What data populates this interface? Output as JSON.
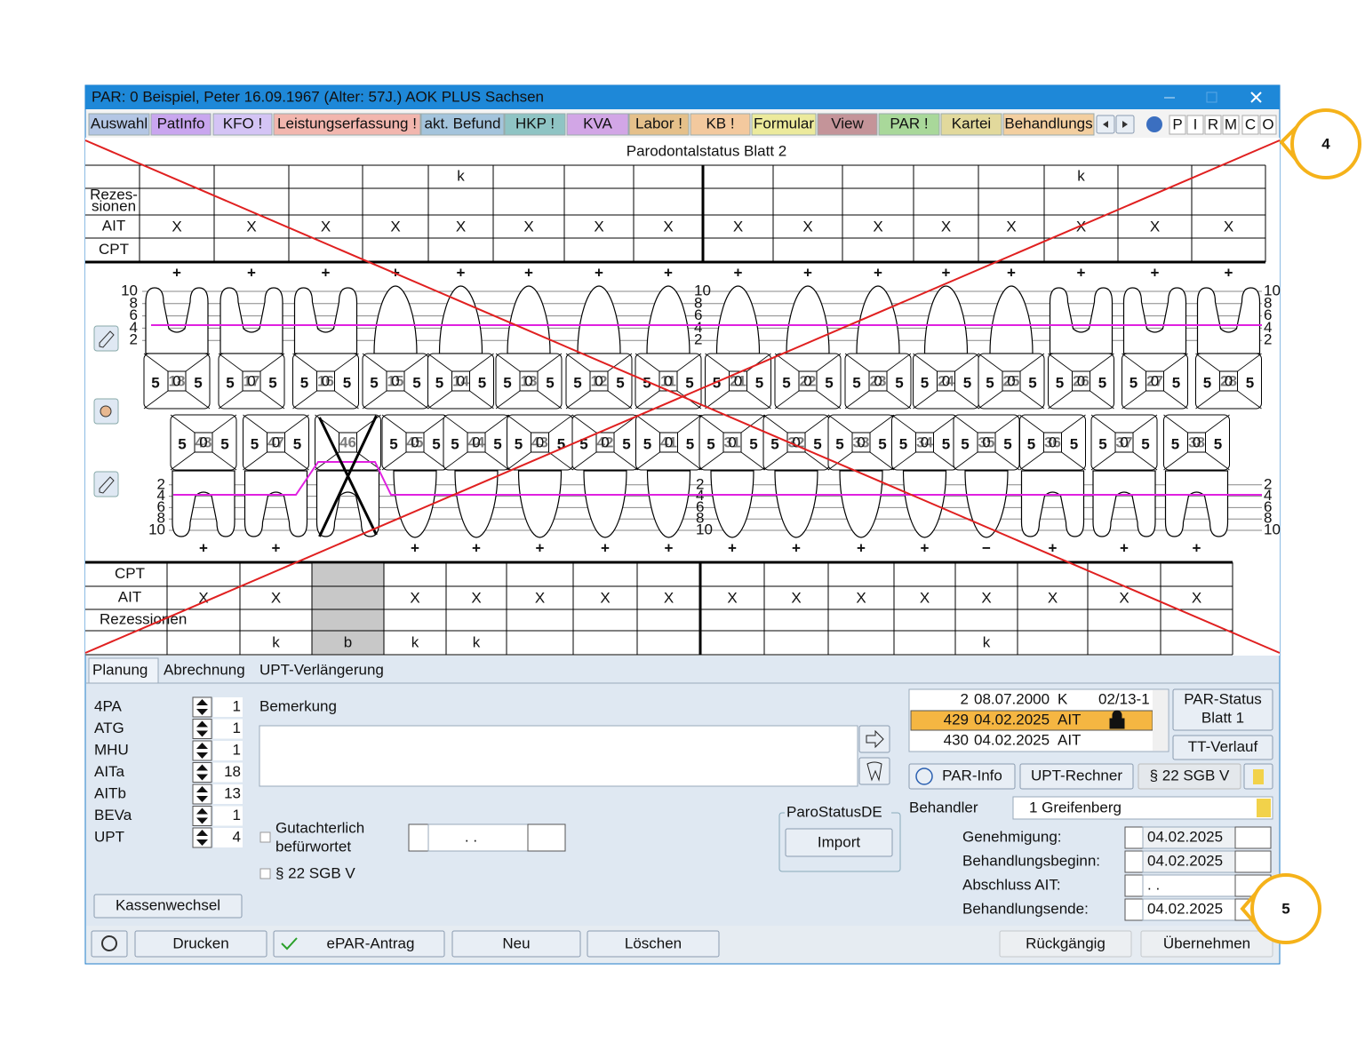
{
  "window": {
    "title": "PAR: 0  Beispiel, Peter  16.09.1967 (Alter: 57J.)  AOK PLUS Sachsen"
  },
  "tabs": [
    {
      "label": "Auswahl",
      "color": "#b4c6e4"
    },
    {
      "label": "PatInfo",
      "color": "#c9a6ef"
    },
    {
      "label": "KFO !",
      "color": "#d4c4f5"
    },
    {
      "label": "Leistungserfassung !",
      "color": "#f2b6ae"
    },
    {
      "label": "akt. Befund",
      "color": "#a4c4dc"
    },
    {
      "label": "HKP !",
      "color": "#8fc4c4"
    },
    {
      "label": "KVA",
      "color": "#d2a6e6"
    },
    {
      "label": "Labor !",
      "color": "#e5c08a"
    },
    {
      "label": "KB !",
      "color": "#f3c99e"
    },
    {
      "label": "Formular",
      "color": "#ecea9c"
    },
    {
      "label": "View",
      "color": "#c49499"
    },
    {
      "label": "PAR !",
      "color": "#a9d89a"
    },
    {
      "label": "Kartei",
      "color": "#e2d99c"
    },
    {
      "label": "Behandlungs",
      "color": "#f3cfa0"
    }
  ],
  "quick_buttons": [
    {
      "label": "P",
      "color": "#e02020"
    },
    {
      "label": "I",
      "color": "#222222"
    },
    {
      "label": "R",
      "color": "#e02020"
    },
    {
      "label": "M",
      "color": "#222222"
    },
    {
      "label": "C",
      "color": "#e02020"
    },
    {
      "label": "O",
      "color": "#222222"
    }
  ],
  "status": {
    "title": "Parodontalstatus Blatt 2",
    "upper_table": {
      "top_row": [
        null,
        null,
        null,
        null,
        "k",
        null,
        null,
        null,
        null,
        null,
        null,
        null,
        null,
        "k",
        null,
        null
      ],
      "rows": [
        {
          "label": [
            "Rezes-",
            "sionen"
          ],
          "cells": [
            null,
            null,
            null,
            null,
            null,
            null,
            null,
            null,
            null,
            null,
            null,
            null,
            null,
            null,
            null,
            null
          ]
        },
        {
          "label": [
            "AIT"
          ],
          "cells": [
            "X",
            "X",
            "X",
            "X",
            "X",
            "X",
            "X",
            "X",
            "X",
            "X",
            "X",
            "X",
            "X",
            "X",
            "X",
            "X"
          ]
        },
        {
          "label": [
            "CPT"
          ],
          "cells": [
            null,
            null,
            null,
            null,
            null,
            null,
            null,
            null,
            null,
            null,
            null,
            null,
            null,
            null,
            null,
            null
          ]
        }
      ]
    },
    "lower_table": {
      "rows": [
        {
          "label": [
            "CPT"
          ],
          "cells": [
            null,
            null,
            null,
            null,
            null,
            null,
            null,
            null,
            null,
            null,
            null,
            null,
            null,
            null,
            null,
            null
          ]
        },
        {
          "label": [
            "AIT"
          ],
          "cells": [
            "X",
            "X",
            null,
            "X",
            "X",
            "X",
            "X",
            "X",
            "X",
            "X",
            "X",
            "X",
            "X",
            "X",
            "X",
            "X"
          ]
        },
        {
          "label": [
            "Rezessionen"
          ],
          "cells": [
            null,
            null,
            null,
            null,
            null,
            null,
            null,
            null,
            null,
            null,
            null,
            null,
            null,
            null,
            null,
            null
          ]
        }
      ],
      "bottom_row": [
        null,
        "k",
        "b",
        "k",
        "k",
        null,
        null,
        null,
        null,
        null,
        null,
        null,
        "k",
        null,
        null,
        null
      ]
    },
    "scale_upper": [
      10,
      8,
      6,
      4,
      2
    ],
    "scale_lower": [
      2,
      4,
      6,
      8,
      10
    ],
    "upper_teeth": [
      {
        "number": "18",
        "left": "5",
        "right": "5",
        "center": "0",
        "sign": "+"
      },
      {
        "number": "17",
        "left": "5",
        "right": "5",
        "center": "0",
        "sign": "+"
      },
      {
        "number": "16",
        "left": "5",
        "right": "5",
        "center": "0",
        "sign": "+"
      },
      {
        "number": "15",
        "left": "5",
        "right": "5",
        "center": "0",
        "sign": "+"
      },
      {
        "number": "14",
        "left": "5",
        "right": "5",
        "center": "0",
        "sign": "+"
      },
      {
        "number": "13",
        "left": "5",
        "right": "5",
        "center": "0",
        "sign": "+"
      },
      {
        "number": "12",
        "left": "5",
        "right": "5",
        "center": "0",
        "sign": "+"
      },
      {
        "number": "11",
        "left": "5",
        "right": "5",
        "center": "0",
        "sign": "+"
      },
      {
        "number": "21",
        "left": "5",
        "right": "5",
        "center": "0",
        "sign": "+"
      },
      {
        "number": "22",
        "left": "5",
        "right": "5",
        "center": "0",
        "sign": "+"
      },
      {
        "number": "23",
        "left": "5",
        "right": "5",
        "center": "0",
        "sign": "+"
      },
      {
        "number": "24",
        "left": "5",
        "right": "5",
        "center": "0",
        "sign": "+"
      },
      {
        "number": "25",
        "left": "5",
        "right": "5",
        "center": "0",
        "sign": "+"
      },
      {
        "number": "26",
        "left": "5",
        "right": "5",
        "center": "0",
        "sign": "+"
      },
      {
        "number": "27",
        "left": "5",
        "right": "5",
        "center": "0",
        "sign": "+"
      },
      {
        "number": "28",
        "left": "5",
        "right": "5",
        "center": "0",
        "sign": "+"
      }
    ],
    "lower_teeth": [
      {
        "number": "48",
        "left": "5",
        "right": "5",
        "center": "0",
        "sign": "+"
      },
      {
        "number": "47",
        "left": "5",
        "right": "5",
        "center": "0",
        "sign": "+"
      },
      {
        "number": "46",
        "missing": true
      },
      {
        "number": "45",
        "left": "5",
        "right": "5",
        "center": "0",
        "sign": "+"
      },
      {
        "number": "44",
        "left": "5",
        "right": "5",
        "center": "0",
        "sign": "+"
      },
      {
        "number": "43",
        "left": "5",
        "right": "5",
        "center": "0",
        "sign": "+"
      },
      {
        "number": "42",
        "left": "5",
        "right": "5",
        "center": "0",
        "sign": "+"
      },
      {
        "number": "41",
        "left": "5",
        "right": "5",
        "center": "0",
        "sign": "+"
      },
      {
        "number": "31",
        "left": "5",
        "right": "5",
        "center": "0",
        "sign": "+"
      },
      {
        "number": "32",
        "left": "5",
        "right": "5",
        "center": "0",
        "sign": "+"
      },
      {
        "number": "33",
        "left": "5",
        "right": "5",
        "center": "0",
        "sign": "+"
      },
      {
        "number": "34",
        "left": "5",
        "right": "5",
        "center": "0",
        "sign": "+"
      },
      {
        "number": "35",
        "left": "5",
        "right": "5",
        "center": "0",
        "sign": "−"
      },
      {
        "number": "36",
        "left": "5",
        "right": "5",
        "center": "0",
        "sign": "+"
      },
      {
        "number": "37",
        "left": "5",
        "right": "5",
        "center": "0",
        "sign": "+"
      },
      {
        "number": "38",
        "left": "5",
        "right": "5",
        "center": "0",
        "sign": "+"
      }
    ]
  },
  "panel": {
    "tabs": [
      "Planung",
      "Abrechnung",
      "UPT-Verlängerung"
    ],
    "counts": [
      {
        "label": "4PA",
        "value": 1
      },
      {
        "label": "ATG",
        "value": 1
      },
      {
        "label": "MHU",
        "value": 1
      },
      {
        "label": "AITa",
        "value": 18
      },
      {
        "label": "AITb",
        "value": 13
      },
      {
        "label": "BEVa",
        "value": 1
      },
      {
        "label": "UPT",
        "value": 4
      }
    ],
    "remark_label": "Bemerkung",
    "checkboxes": [
      {
        "label": [
          "Gutachterlich",
          "befürwortet"
        ]
      },
      {
        "label": [
          "§ 22 SGB V"
        ]
      }
    ],
    "empty_date": ".   .",
    "parostatus": {
      "legend": "ParoStatusDE",
      "button": "Import"
    },
    "kassenwechsel": "Kassenwechsel",
    "history": [
      {
        "no": "2",
        "date": "08.07.2000",
        "type": "K",
        "ref": "02/13-1"
      },
      {
        "no": "429",
        "date": "04.02.2025",
        "type": "AIT",
        "selected": true
      },
      {
        "no": "430",
        "date": "04.02.2025",
        "type": "AIT"
      }
    ],
    "side_buttons": [
      {
        "label": [
          "PAR-Status",
          "Blatt 1"
        ]
      },
      {
        "label": [
          "TT-Verlauf"
        ]
      }
    ],
    "info_buttons": [
      {
        "label": "PAR-Info"
      },
      {
        "label": "UPT-Rechner"
      },
      {
        "label": "§ 22 SGB V",
        "disabled": true
      }
    ],
    "behandler": {
      "label": "Behandler",
      "value": "1 Greifenberg"
    },
    "dates": [
      {
        "label": "Genehmigung:",
        "value": "04.02.2025",
        "disabled": true
      },
      {
        "label": "Behandlungsbeginn:",
        "value": "04.02.2025",
        "disabled": true
      },
      {
        "label": "Abschluss AIT:",
        "value": ".   ."
      },
      {
        "label": "Behandlungsende:",
        "value": "04.02.2025"
      }
    ],
    "footer_buttons": [
      {
        "label": "Drucken"
      },
      {
        "label": "ePAR-Antrag",
        "check": true
      },
      {
        "label": "Neu"
      },
      {
        "label": "Löschen"
      },
      {
        "label": "Rückgängig",
        "disabled": true
      },
      {
        "label": "Übernehmen",
        "disabled": true
      }
    ]
  },
  "callouts": [
    "4",
    "5"
  ]
}
